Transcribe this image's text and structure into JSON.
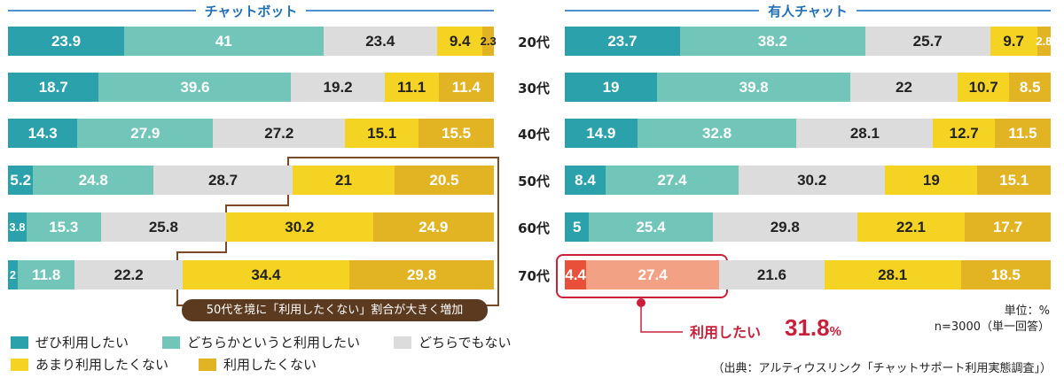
{
  "chart_data": [
    {
      "type": "bar",
      "stacked": true,
      "orientation": "horizontal",
      "title": "チャットボット",
      "categories": [
        "20代",
        "30代",
        "40代",
        "50代",
        "60代",
        "70代"
      ],
      "series": [
        {
          "name": "ぜひ利用したい",
          "color": "#2aa1ab",
          "values": [
            23.9,
            18.7,
            14.3,
            5.2,
            3.8,
            2
          ]
        },
        {
          "name": "どちらかというと利用したい",
          "color": "#71c6b9",
          "values": [
            41,
            39.6,
            27.9,
            24.8,
            15.3,
            11.8
          ]
        },
        {
          "name": "どちらでもない",
          "color": "#dcdcdc",
          "values": [
            23.4,
            19.2,
            27.2,
            28.7,
            25.8,
            22.2
          ]
        },
        {
          "name": "あまり利用したくない",
          "color": "#f5d322",
          "values": [
            9.4,
            11.1,
            15.1,
            21,
            30.2,
            34.4
          ]
        },
        {
          "name": "利用したくない",
          "color": "#e2b424",
          "values": [
            2.3,
            11.4,
            15.5,
            20.5,
            24.9,
            29.8
          ]
        }
      ],
      "annotation": "50代を境に「利用したくない」割合が大きく増加"
    },
    {
      "type": "bar",
      "stacked": true,
      "orientation": "horizontal",
      "title": "有人チャット",
      "categories": [
        "20代",
        "30代",
        "40代",
        "50代",
        "60代",
        "70代"
      ],
      "series": [
        {
          "name": "ぜひ利用したい",
          "color": "#2aa1ab",
          "values": [
            23.7,
            19,
            14.9,
            8.4,
            5,
            4.4
          ]
        },
        {
          "name": "どちらかというと利用したい",
          "color": "#71c6b9",
          "values": [
            38.2,
            39.8,
            32.8,
            27.4,
            25.4,
            27.4
          ]
        },
        {
          "name": "どちらでもない",
          "color": "#dcdcdc",
          "values": [
            25.7,
            22,
            28.1,
            30.2,
            29.8,
            21.6
          ]
        },
        {
          "name": "あまり利用したくない",
          "color": "#f5d322",
          "values": [
            9.7,
            10.7,
            12.7,
            19,
            22.1,
            28.1
          ]
        },
        {
          "name": "利用したくない",
          "color": "#e2b424",
          "values": [
            2.8,
            8.5,
            11.5,
            15.1,
            17.7,
            18.5
          ]
        }
      ],
      "annotation": {
        "label": "利用したい",
        "value": "31.8",
        "unit": "%"
      }
    }
  ],
  "highlight_colors": [
    "#e8503a",
    "#f3a185"
  ],
  "unit_note": "単位：%",
  "sample_note": "n=3000（単一回答）",
  "source": "（出典：アルティウスリンク「チャットサポート利用実態調査」）"
}
